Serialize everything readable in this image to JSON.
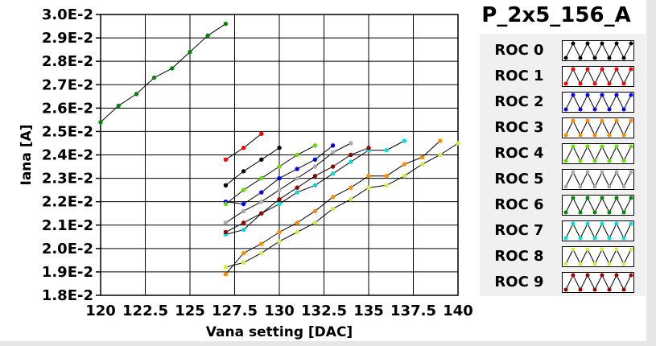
{
  "title": "P_2x5_156_A",
  "chart_data": {
    "type": "line",
    "xlabel": "Vana setting [DAC]",
    "ylabel": "Iana [A]",
    "xlim": [
      120,
      140
    ],
    "ylim": [
      0.018,
      0.03
    ],
    "x_ticks": [
      "120",
      "122.5",
      "125",
      "127.5",
      "130",
      "132.5",
      "135",
      "137.5",
      "140"
    ],
    "x_tick_values": [
      120,
      122.5,
      125,
      127.5,
      130,
      132.5,
      135,
      137.5,
      140
    ],
    "y_ticks": [
      "1.8E-2",
      "1.9E-2",
      "2.0E-2",
      "2.1E-2",
      "2.2E-2",
      "2.3E-2",
      "2.4E-2",
      "2.5E-2",
      "2.6E-2",
      "2.7E-2",
      "2.8E-2",
      "2.9E-2",
      "3.0E-2"
    ],
    "y_tick_values": [
      0.018,
      0.019,
      0.02,
      0.021,
      0.022,
      0.023,
      0.024,
      0.025,
      0.026,
      0.027,
      0.028,
      0.029,
      0.03
    ],
    "grid": true,
    "legend_position": "right",
    "series": [
      {
        "name": "ROC 0",
        "color": "#000000",
        "x": [
          127,
          128,
          129,
          130
        ],
        "y": [
          0.0227,
          0.0233,
          0.0238,
          0.0243
        ]
      },
      {
        "name": "ROC 1",
        "color": "#ff0000",
        "x": [
          127,
          128,
          129
        ],
        "y": [
          0.0238,
          0.0243,
          0.0249
        ]
      },
      {
        "name": "ROC 2",
        "color": "#0000ff",
        "x": [
          127,
          128,
          129,
          130,
          131,
          132,
          133
        ],
        "y": [
          0.022,
          0.0219,
          0.0224,
          0.023,
          0.0234,
          0.0238,
          0.0244
        ]
      },
      {
        "name": "ROC 3",
        "color": "#ff8c00",
        "x": [
          127,
          128,
          129,
          130,
          131,
          132,
          133,
          134,
          135,
          136,
          137,
          138,
          139
        ],
        "y": [
          0.0189,
          0.0198,
          0.0202,
          0.0207,
          0.0211,
          0.0216,
          0.0222,
          0.0226,
          0.0231,
          0.0231,
          0.0236,
          0.0239,
          0.0246
        ]
      },
      {
        "name": "ROC 4",
        "color": "#66dd00",
        "x": [
          127,
          128,
          129,
          130,
          131,
          132
        ],
        "y": [
          0.0219,
          0.0225,
          0.023,
          0.0235,
          0.024,
          0.0244
        ]
      },
      {
        "name": "ROC 5",
        "color": "#aaaaaa",
        "x": [
          127,
          128,
          129,
          130,
          131,
          132,
          133,
          134
        ],
        "y": [
          0.0211,
          0.0216,
          0.022,
          0.0225,
          0.023,
          0.0235,
          0.0241,
          0.0245
        ]
      },
      {
        "name": "ROC 6",
        "color": "#008800",
        "x": [
          120,
          121,
          122,
          123,
          124,
          125,
          126,
          127
        ],
        "y": [
          0.0254,
          0.0261,
          0.0266,
          0.0273,
          0.0277,
          0.0284,
          0.0291,
          0.0296
        ]
      },
      {
        "name": "ROC 7",
        "color": "#00dddd",
        "x": [
          127,
          128,
          129,
          130,
          131,
          132,
          133,
          134,
          135,
          136,
          137
        ],
        "y": [
          0.0206,
          0.0208,
          0.0215,
          0.0219,
          0.0224,
          0.0227,
          0.0232,
          0.0237,
          0.0242,
          0.0242,
          0.0246
        ]
      },
      {
        "name": "ROC 8",
        "color": "#ccee44",
        "x": [
          127,
          128,
          129,
          130,
          131,
          132,
          133,
          134,
          135,
          136,
          137,
          138,
          139,
          140
        ],
        "y": [
          0.0192,
          0.0194,
          0.0198,
          0.0203,
          0.0207,
          0.0211,
          0.0217,
          0.0221,
          0.0226,
          0.0227,
          0.0231,
          0.0236,
          0.024,
          0.0245
        ]
      },
      {
        "name": "ROC 9",
        "color": "#990000",
        "x": [
          127,
          128,
          129,
          130,
          131,
          132,
          133,
          134,
          135
        ],
        "y": [
          0.0207,
          0.0211,
          0.0215,
          0.0221,
          0.0226,
          0.0231,
          0.0235,
          0.024,
          0.0243
        ]
      }
    ]
  }
}
